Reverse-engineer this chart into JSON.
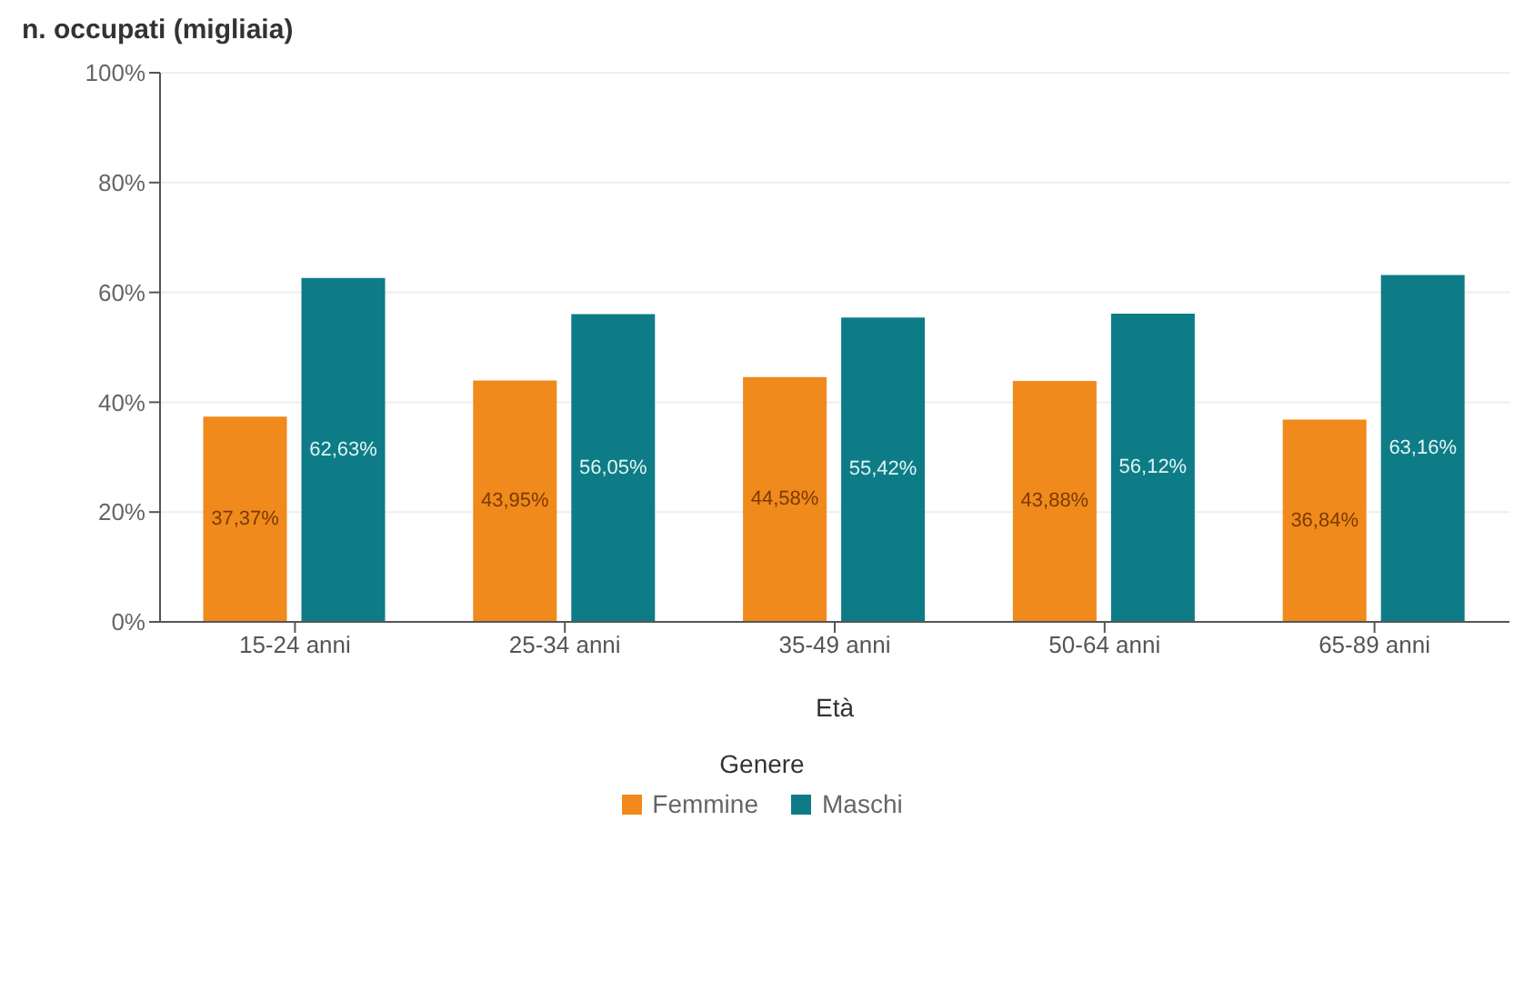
{
  "chart_data": {
    "type": "bar",
    "ylabel": "n. occupati (migliaia)",
    "xlabel": "Età",
    "legend_title": "Genere",
    "categories": [
      "15-24 anni",
      "25-34 anni",
      "35-49 anni",
      "50-64 anni",
      "65-89 anni"
    ],
    "series": [
      {
        "name": "Femmine",
        "color": "#f08a1c",
        "values": [
          37.37,
          43.95,
          44.58,
          43.88,
          36.84
        ],
        "value_labels": [
          "37,37%",
          "43,95%",
          "44,58%",
          "43,88%",
          "36,84%"
        ]
      },
      {
        "name": "Maschi",
        "color": "#0e7c86",
        "values": [
          62.63,
          56.05,
          55.42,
          56.12,
          63.16
        ],
        "value_labels": [
          "62,63%",
          "56,05%",
          "55,42%",
          "56,12%",
          "63,16%"
        ]
      }
    ],
    "ylim": [
      0,
      100
    ],
    "yticks": [
      {
        "value": 0,
        "label": "0%"
      },
      {
        "value": 20,
        "label": "20%"
      },
      {
        "value": 40,
        "label": "40%"
      },
      {
        "value": 60,
        "label": "60%"
      },
      {
        "value": 80,
        "label": "80%"
      },
      {
        "value": 100,
        "label": "100%"
      }
    ],
    "grid": "y",
    "legend": "bottom"
  }
}
